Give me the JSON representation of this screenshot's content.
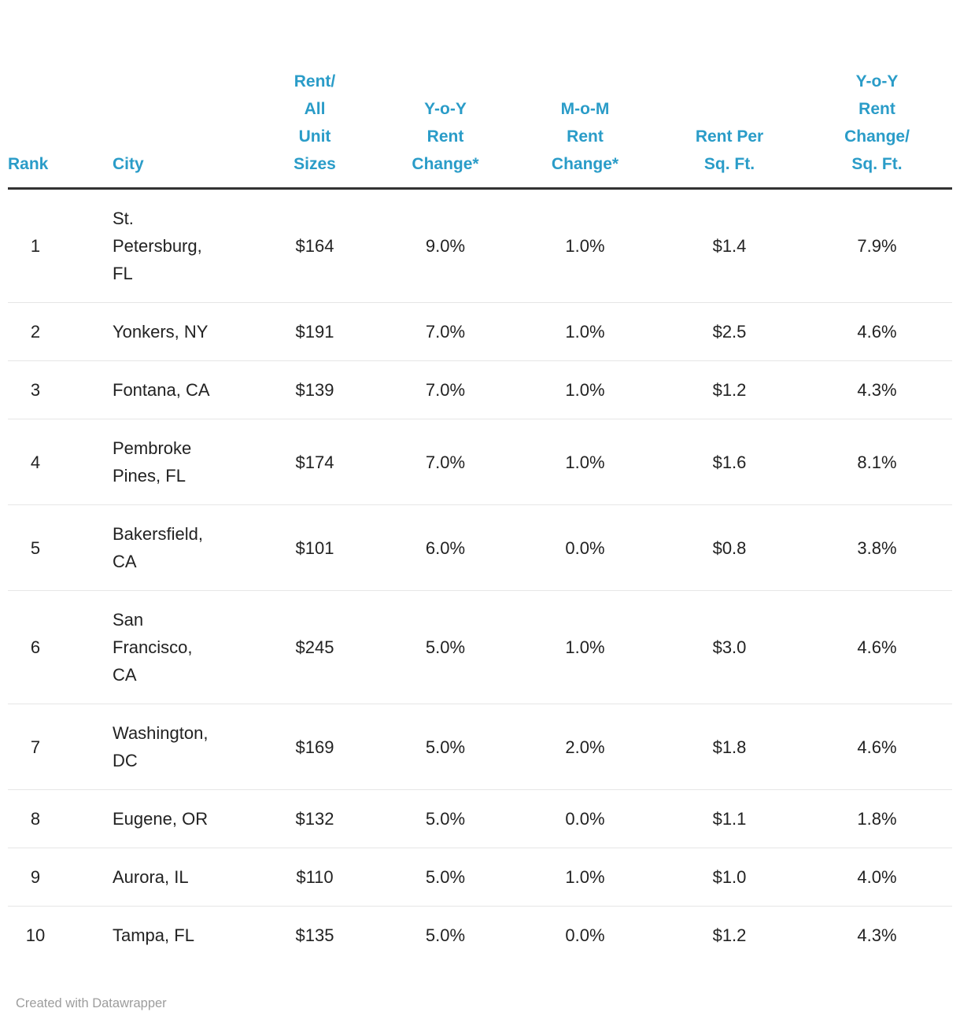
{
  "chart_data": {
    "type": "table",
    "title": "",
    "columns": [
      "Rank",
      "City",
      "Rent/\nAll\nUnit\nSizes",
      "Y-o-Y\nRent\nChange*",
      "M-o-M\nRent\nChange*",
      "Rent Per\nSq. Ft.",
      "Y-o-Y\nRent\nChange/\nSq. Ft."
    ],
    "rows": [
      [
        "1",
        "St. Petersburg, FL",
        "$164",
        "9.0%",
        "1.0%",
        "$1.4",
        "7.9%"
      ],
      [
        "2",
        "Yonkers, NY",
        "$191",
        "7.0%",
        "1.0%",
        "$2.5",
        "4.6%"
      ],
      [
        "3",
        "Fontana, CA",
        "$139",
        "7.0%",
        "1.0%",
        "$1.2",
        "4.3%"
      ],
      [
        "4",
        "Pembroke Pines, FL",
        "$174",
        "7.0%",
        "1.0%",
        "$1.6",
        "8.1%"
      ],
      [
        "5",
        "Bakersfield, CA",
        "$101",
        "6.0%",
        "0.0%",
        "$0.8",
        "3.8%"
      ],
      [
        "6",
        "San Francisco, CA",
        "$245",
        "5.0%",
        "1.0%",
        "$3.0",
        "4.6%"
      ],
      [
        "7",
        "Washington, DC",
        "$169",
        "5.0%",
        "2.0%",
        "$1.8",
        "4.6%"
      ],
      [
        "8",
        "Eugene, OR",
        "$132",
        "5.0%",
        "0.0%",
        "$1.1",
        "1.8%"
      ],
      [
        "9",
        "Aurora, IL",
        "$110",
        "5.0%",
        "1.0%",
        "$1.0",
        "4.0%"
      ],
      [
        "10",
        "Tampa, FL",
        "$135",
        "5.0%",
        "0.0%",
        "$1.2",
        "4.3%"
      ]
    ],
    "layout": {
      "grid": "horizontal-row-dividers",
      "header_rule": true
    }
  },
  "footer": {
    "credit": "Created with Datawrapper"
  },
  "colors": {
    "header_text": "#2a9cc8",
    "body_text": "#222222",
    "header_rule": "#333333",
    "row_divider": "#e6e6e6",
    "footer_text": "#9d9d9d",
    "background": "#ffffff"
  }
}
